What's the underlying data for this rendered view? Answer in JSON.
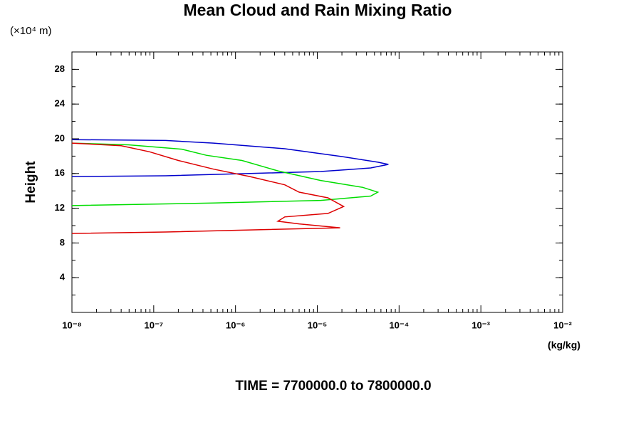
{
  "chart_data": {
    "type": "line",
    "title": "Mean Cloud and Rain Mixing Ratio",
    "y_unit": "(×10⁴ m)",
    "ylabel": "Height",
    "xlabel": "(kg/kg)",
    "annotation": "TIME = 7700000.0 to 7800000.0",
    "xscale": "log",
    "xlim": [
      1e-08,
      0.01
    ],
    "ylim": [
      0,
      30
    ],
    "xticks": [
      {
        "value": 1e-08,
        "label": "10⁻⁸"
      },
      {
        "value": 1e-07,
        "label": "10⁻⁷"
      },
      {
        "value": 1e-06,
        "label": "10⁻⁶"
      },
      {
        "value": 1e-05,
        "label": "10⁻⁵"
      },
      {
        "value": 0.0001,
        "label": "10⁻⁴"
      },
      {
        "value": 0.001,
        "label": "10⁻³"
      },
      {
        "value": 0.01,
        "label": "10⁻²"
      }
    ],
    "yticks": [
      4,
      8,
      12,
      16,
      20,
      24,
      28
    ],
    "series": [
      {
        "color": "#0000cc",
        "x": [
          1e-08,
          1.4e-07,
          5.4e-07,
          4e-06,
          2e-05,
          5.5e-05,
          7.4e-05,
          4.5e-05,
          1.1e-05,
          1.5e-06,
          1.4e-07,
          1e-08
        ],
        "values": [
          19.9,
          19.8,
          19.5,
          18.85,
          17.95,
          17.3,
          17.05,
          16.64,
          16.23,
          16.0,
          15.74,
          15.65
        ]
      },
      {
        "color": "#00dd00",
        "x": [
          1e-08,
          4.9e-08,
          2.2e-07,
          4.4e-07,
          1.2e-06,
          3.3e-06,
          1.1e-05,
          3.6e-05,
          5.5e-05,
          4.5e-05,
          1.1e-05,
          5.4e-07,
          1e-08
        ],
        "values": [
          19.5,
          19.3,
          18.8,
          18.1,
          17.5,
          16.3,
          15.2,
          14.4,
          13.85,
          13.4,
          12.9,
          12.6,
          12.3
        ]
      },
      {
        "color": "#dd0000",
        "x": [
          1e-08,
          4e-08,
          8.9e-08,
          2e-07,
          5.4e-07,
          1.5e-06,
          4e-06,
          6e-06,
          1.35e-05,
          2.1e-05,
          1.35e-05,
          4e-06,
          3.3e-06,
          6e-06,
          1.9e-05,
          1.5e-06,
          1.4e-07,
          1e-08
        ],
        "values": [
          19.5,
          19.2,
          18.5,
          17.5,
          16.5,
          15.65,
          14.7,
          13.85,
          13.2,
          12.2,
          11.4,
          11.0,
          10.5,
          10.2,
          9.75,
          9.5,
          9.26,
          9.1
        ]
      }
    ]
  }
}
